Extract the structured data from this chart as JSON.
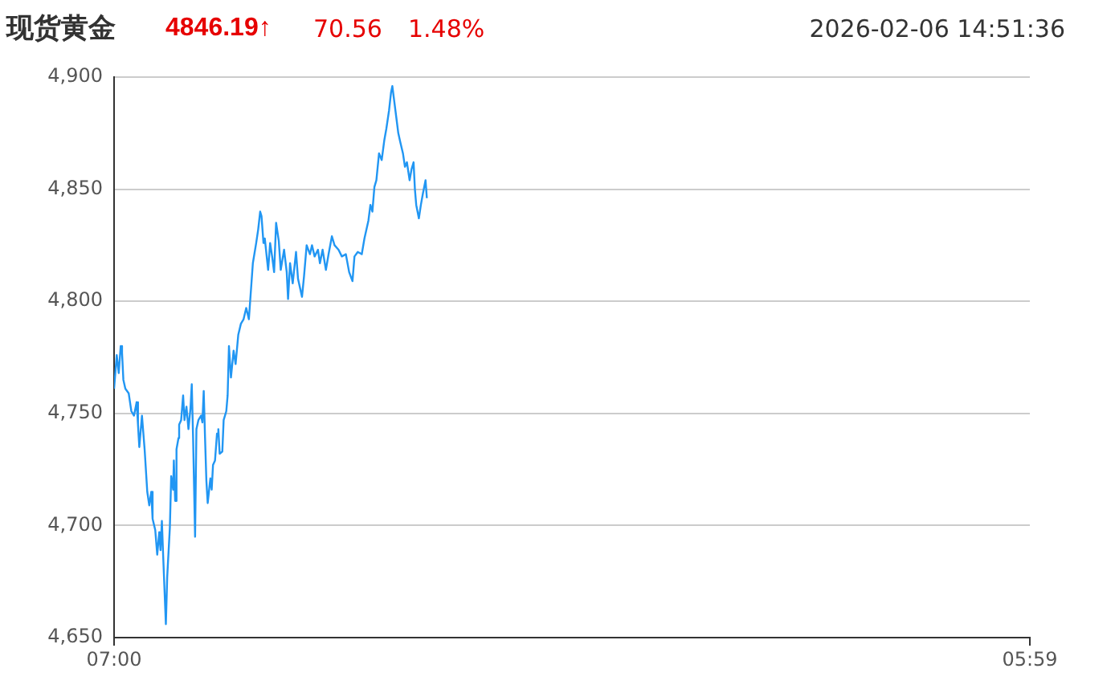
{
  "chart_data": {
    "type": "line",
    "title": "现货黄金",
    "annotations": [
      "4846.19↑",
      "70.56",
      "1.48%",
      "2026-02-06 14:51:36"
    ],
    "x": [
      "2026-02-06T07:00",
      "2026-02-06T07:04",
      "2026-02-06T07:07",
      "2026-02-06T07:10",
      "2026-02-06T07:12",
      "2026-02-06T07:14",
      "2026-02-06T07:17",
      "2026-02-06T07:22",
      "2026-02-06T07:26",
      "2026-02-06T07:30",
      "2026-02-06T07:34",
      "2026-02-06T07:36",
      "2026-02-06T07:38",
      "2026-02-06T07:42",
      "2026-02-06T07:46",
      "2026-02-06T07:50",
      "2026-02-06T07:53",
      "2026-02-06T07:56",
      "2026-02-06T07:58",
      "2026-02-06T08:02",
      "2026-02-06T08:05",
      "2026-02-06T08:08",
      "2026-02-06T08:10",
      "2026-02-06T08:12",
      "2026-02-06T08:14",
      "2026-02-06T08:18",
      "2026-02-06T08:20",
      "2026-02-06T08:24",
      "2026-02-06T08:26",
      "2026-02-06T08:29",
      "2026-02-06T08:30",
      "2026-02-06T08:32",
      "2026-02-06T08:34",
      "2026-02-06T08:37",
      "2026-02-06T08:38",
      "2026-02-06T08:41",
      "2026-02-06T08:44",
      "2026-02-06T08:46",
      "2026-02-06T08:49",
      "2026-02-06T08:52",
      "2026-02-06T08:55",
      "2026-02-06T08:57",
      "2026-02-06T08:59",
      "2026-02-06T09:02",
      "2026-02-06T09:04",
      "2026-02-06T09:07",
      "2026-02-06T09:11",
      "2026-02-06T09:13",
      "2026-02-06T09:15",
      "2026-02-06T09:17",
      "2026-02-06T09:19",
      "2026-02-06T09:21",
      "2026-02-06T09:25",
      "2026-02-06T09:27",
      "2026-02-06T09:29",
      "2026-02-06T09:32",
      "2026-02-06T09:35",
      "2026-02-06T09:37",
      "2026-02-06T09:39",
      "2026-02-06T09:43",
      "2026-02-06T09:45",
      "2026-02-06T09:49",
      "2026-02-06T09:51",
      "2026-02-06T09:53",
      "2026-02-06T09:56",
      "2026-02-06T10:00",
      "2026-02-06T10:03",
      "2026-02-06T10:07",
      "2026-02-06T10:11",
      "2026-02-06T10:15",
      "2026-02-06T10:19",
      "2026-02-06T10:23",
      "2026-02-06T10:29",
      "2026-02-06T10:34",
      "2026-02-06T10:37",
      "2026-02-06T10:40",
      "2026-02-06T10:42",
      "2026-02-06T10:45",
      "2026-02-06T10:47",
      "2026-02-06T10:52",
      "2026-02-06T10:55",
      "2026-02-06T10:58",
      "2026-02-06T11:01",
      "2026-02-06T11:04",
      "2026-02-06T11:08",
      "2026-02-06T11:11",
      "2026-02-06T11:16",
      "2026-02-06T11:20",
      "2026-02-06T11:22",
      "2026-02-06T11:25",
      "2026-02-06T11:29",
      "2026-02-06T11:34",
      "2026-02-06T11:37",
      "2026-02-06T11:43",
      "2026-02-06T11:46",
      "2026-02-06T11:50",
      "2026-02-06T11:55",
      "2026-02-06T11:58",
      "2026-02-06T12:02",
      "2026-02-06T12:07",
      "2026-02-06T12:10",
      "2026-02-06T12:14",
      "2026-02-06T12:19",
      "2026-02-06T12:23",
      "2026-02-06T12:28",
      "2026-02-06T12:32",
      "2026-02-06T12:38",
      "2026-02-06T12:43",
      "2026-02-06T12:49",
      "2026-02-06T12:54",
      "2026-02-06T12:59",
      "2026-02-06T13:02",
      "2026-02-06T13:07",
      "2026-02-06T13:13",
      "2026-02-06T13:17",
      "2026-02-06T13:23",
      "2026-02-06T13:26",
      "2026-02-06T13:29",
      "2026-02-06T13:32",
      "2026-02-06T13:35",
      "2026-02-06T13:39",
      "2026-02-06T13:43",
      "2026-02-06T13:47",
      "2026-02-06T13:50",
      "2026-02-06T13:54",
      "2026-02-06T13:57",
      "2026-02-06T13:59",
      "2026-02-06T14:02",
      "2026-02-06T14:05",
      "2026-02-06T14:08",
      "2026-02-06T14:11",
      "2026-02-06T14:15",
      "2026-02-06T14:18",
      "2026-02-06T14:21",
      "2026-02-06T14:25",
      "2026-02-06T14:28",
      "2026-02-06T14:31",
      "2026-02-06T14:33",
      "2026-02-06T14:35",
      "2026-02-06T14:39",
      "2026-02-06T14:42",
      "2026-02-06T14:45",
      "2026-02-06T14:49",
      "2026-02-06T14:51"
    ],
    "series": [
      {
        "color": "#2196f3",
        "values": [
          4761,
          4776,
          4768,
          4780,
          4777,
          4765,
          4761,
          4759,
          4751,
          4749,
          4755,
          4745,
          4735,
          4749,
          4734,
          4715,
          4709,
          4715,
          4703,
          4698,
          4687,
          4697,
          4689,
          4702,
          4686,
          4656,
          4677,
          4699,
          4722,
          4716,
          4729,
          4711,
          4734,
          4739,
          4745,
          4747,
          4758,
          4747,
          4753,
          4743,
          4752,
          4763,
          4739,
          4695,
          4743,
          4747,
          4749,
          4746,
          4760,
          4739,
          4720,
          4710,
          4721,
          4716,
          4727,
          4729,
          4741,
          4743,
          4732,
          4733,
          4747,
          4751,
          4758,
          4780,
          4766,
          4778,
          4772,
          4785,
          4790,
          4792,
          4797,
          4792,
          4817,
          4826,
          4832,
          4840,
          4838,
          4826,
          4828,
          4814,
          4826,
          4820,
          4813,
          4835,
          4827,
          4814,
          4823,
          4813,
          4801,
          4817,
          4808,
          4822,
          4810,
          4802,
          4811,
          4825,
          4821,
          4825,
          4820,
          4823,
          4817,
          4823,
          4814,
          4821,
          4829,
          4825,
          4823,
          4820,
          4821,
          4813,
          4809,
          4820,
          4822,
          4821,
          4828,
          4836,
          4843,
          4840,
          4851,
          4854,
          4866,
          4863,
          4872,
          4877,
          4885,
          4893,
          4896,
          4889,
          4882,
          4875,
          4871,
          4866,
          4860,
          4862,
          4854,
          4859,
          4862,
          4850,
          4843,
          4837,
          4843,
          4848,
          4854,
          4846
        ]
      }
    ],
    "xlim": [
      "2026-02-06T07:00",
      "2026-02-07T05:59"
    ],
    "xticks": [
      {
        "value": "2026-02-06T07:00",
        "label": "07:00"
      },
      {
        "value": "2026-02-07T05:59",
        "label": "05:59"
      }
    ],
    "ylim": [
      4650,
      4900
    ],
    "yticks": [
      {
        "value": 4650,
        "label": "4,650"
      },
      {
        "value": 4700,
        "label": "4,700"
      },
      {
        "value": 4750,
        "label": "4,750"
      },
      {
        "value": 4800,
        "label": "4,800"
      },
      {
        "value": 4850,
        "label": "4,850"
      },
      {
        "value": 4900,
        "label": "4,900"
      }
    ],
    "grid": "y"
  }
}
